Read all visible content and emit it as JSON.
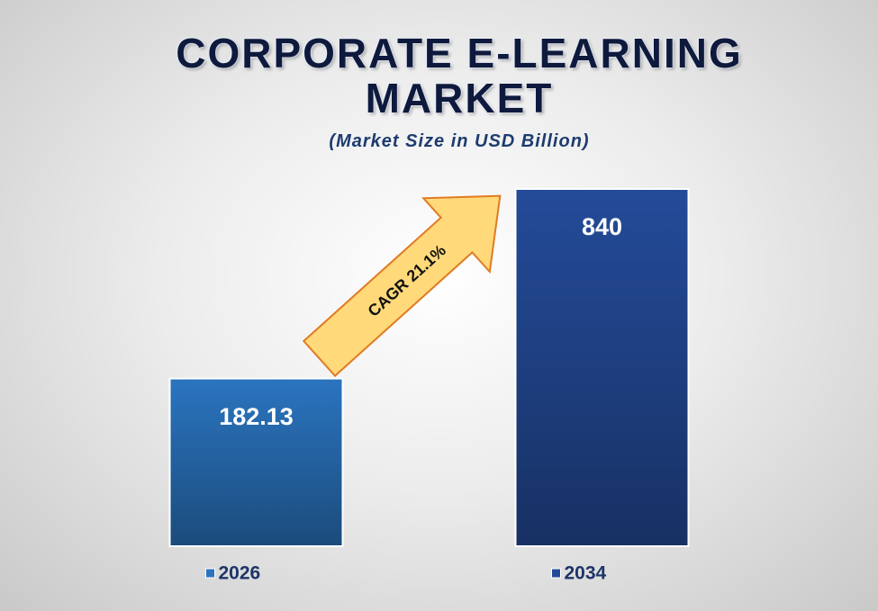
{
  "chart_data": {
    "type": "bar",
    "title": "CORPORATE E-LEARNING MARKET",
    "subtitle": "(Market Size in USD Billion)",
    "annotation": "CAGR 21.1%",
    "categories": [
      "2026",
      "2034"
    ],
    "values": [
      182.13,
      840
    ],
    "colors": [
      "#2a74bf",
      "#244b99"
    ],
    "ylim": [
      -400,
      850
    ],
    "legend": "bottom"
  }
}
